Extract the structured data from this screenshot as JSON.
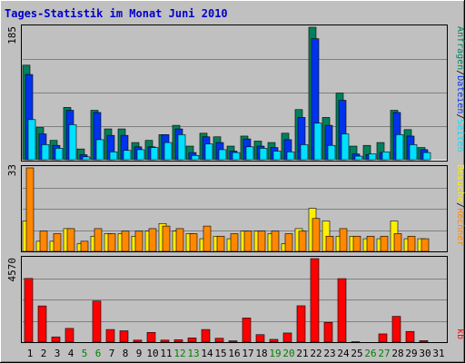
{
  "title": "Tages-Statistik im Monat Juni 2010",
  "colors": {
    "background": "#c0c0c0",
    "title": "#0000cc",
    "anfragen": "#00805c",
    "dateien": "#0033ee",
    "seiten": "#00e0ff",
    "besuche": "#ffee00",
    "rechner": "#ff8800",
    "kb": "#ff0000",
    "weekend_label": "#008000"
  },
  "panels": {
    "top": {
      "max_label": "185",
      "legend": [
        {
          "key": "anfragen",
          "text": "Anfragen"
        },
        {
          "key": "sep",
          "text": "/"
        },
        {
          "key": "dateien",
          "text": "Dateien"
        },
        {
          "key": "sep",
          "text": "/"
        },
        {
          "key": "seiten",
          "text": "Seiten"
        }
      ]
    },
    "middle": {
      "max_label": "33",
      "legend": [
        {
          "key": "besuche",
          "text": "Besuche"
        },
        {
          "key": "sep",
          "text": "/"
        },
        {
          "key": "rechner",
          "text": "Rechner"
        }
      ]
    },
    "bottom": {
      "max_label": "4570",
      "legend": [
        {
          "key": "kb",
          "text": "kb"
        }
      ]
    }
  },
  "chart_data": {
    "type": "bar",
    "categories": [
      "1",
      "2",
      "3",
      "4",
      "5",
      "6",
      "7",
      "8",
      "9",
      "10",
      "11",
      "12",
      "13",
      "14",
      "15",
      "16",
      "17",
      "18",
      "19",
      "20",
      "21",
      "22",
      "23",
      "24",
      "25",
      "26",
      "27",
      "28",
      "29",
      "30",
      "31"
    ],
    "weekend_days": [
      "5",
      "6",
      "12",
      "13",
      "19",
      "20",
      "26",
      "27"
    ],
    "series": [
      {
        "name": "Anfragen",
        "max": 185,
        "values": [
          132,
          45,
          27,
          73,
          15,
          69,
          43,
          43,
          24,
          27,
          35,
          48,
          19,
          37,
          32,
          19,
          33,
          26,
          24,
          37,
          70,
          185,
          59,
          93,
          19,
          20,
          24,
          69,
          42,
          17,
          0
        ]
      },
      {
        "name": "Dateien",
        "max": 185,
        "values": [
          119,
          36,
          20,
          69,
          7,
          66,
          34,
          34,
          18,
          18,
          35,
          43,
          10,
          32,
          24,
          12,
          29,
          19,
          17,
          28,
          59,
          169,
          48,
          83,
          8,
          7,
          10,
          66,
          33,
          14,
          0
        ]
      },
      {
        "name": "Seiten",
        "max": 185,
        "values": [
          56,
          21,
          16,
          49,
          4,
          28,
          11,
          13,
          14,
          17,
          24,
          35,
          6,
          22,
          14,
          10,
          18,
          16,
          12,
          11,
          21,
          51,
          20,
          36,
          5,
          8,
          11,
          35,
          21,
          10,
          0
        ]
      },
      {
        "name": "Besuche",
        "max": 33,
        "values": [
          12,
          4,
          4,
          9,
          3,
          6,
          7,
          7,
          6,
          8,
          11,
          8,
          7,
          5,
          6,
          5,
          8,
          8,
          7,
          3,
          9,
          17,
          12,
          6,
          6,
          5,
          5,
          12,
          5,
          5,
          0
        ]
      },
      {
        "name": "Rechner",
        "max": 33,
        "values": [
          33,
          8,
          7,
          9,
          4,
          9,
          7,
          8,
          8,
          9,
          10,
          9,
          7,
          10,
          6,
          7,
          8,
          8,
          8,
          7,
          8,
          13,
          6,
          9,
          6,
          6,
          6,
          7,
          6,
          5,
          0
        ]
      },
      {
        "name": "kb",
        "max": 4570,
        "values": [
          3485,
          1980,
          285,
          750,
          0,
          2250,
          690,
          620,
          110,
          530,
          110,
          130,
          230,
          690,
          210,
          70,
          1320,
          410,
          150,
          500,
          1990,
          4570,
          1080,
          3475,
          20,
          0,
          450,
          1410,
          585,
          80,
          0
        ]
      }
    ]
  }
}
